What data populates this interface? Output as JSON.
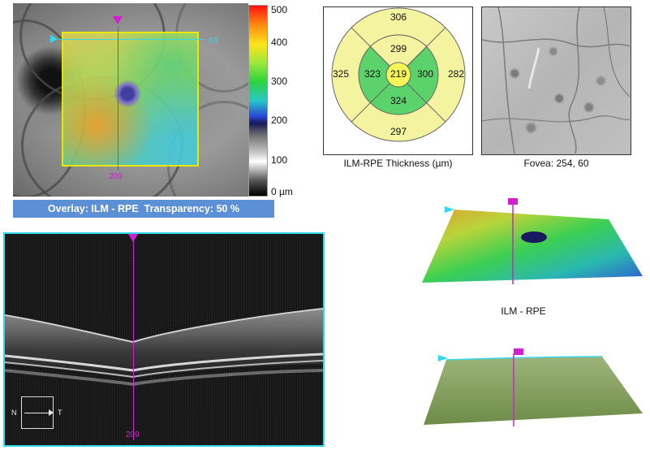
{
  "fundus": {
    "scan_number_bottom": "209",
    "scan_number_right": "63",
    "colorbar_labels": [
      "500",
      "400",
      "300",
      "200",
      "100",
      "0 µm"
    ]
  },
  "overlay_banner": "Overlay: ILM - RPE  Transparency: 50 %",
  "bscan": {
    "scan_number": "209",
    "orientation_left": "N",
    "orientation_right": "T"
  },
  "etdrs": {
    "caption": "ILM-RPE Thickness (µm)",
    "center": "219",
    "inner_superior": "299",
    "inner_nasal": "323",
    "inner_temporal": "300",
    "inner_inferior": "324",
    "outer_superior": "306",
    "outer_nasal": "325",
    "outer_temporal": "282",
    "outer_inferior": "297"
  },
  "fovea": {
    "caption": "Fovea: 254, 60"
  },
  "surface_3d": {
    "caption": "ILM - RPE"
  },
  "colors": {
    "cyan_marker": "#35d7e8",
    "magenta_marker": "#d020d0",
    "banner_bg": "#5b8fd6",
    "etdrs_yellow": "#f4f4a0",
    "etdrs_green": "#5bd36a",
    "etdrs_center_yellow": "#f6f65a"
  }
}
